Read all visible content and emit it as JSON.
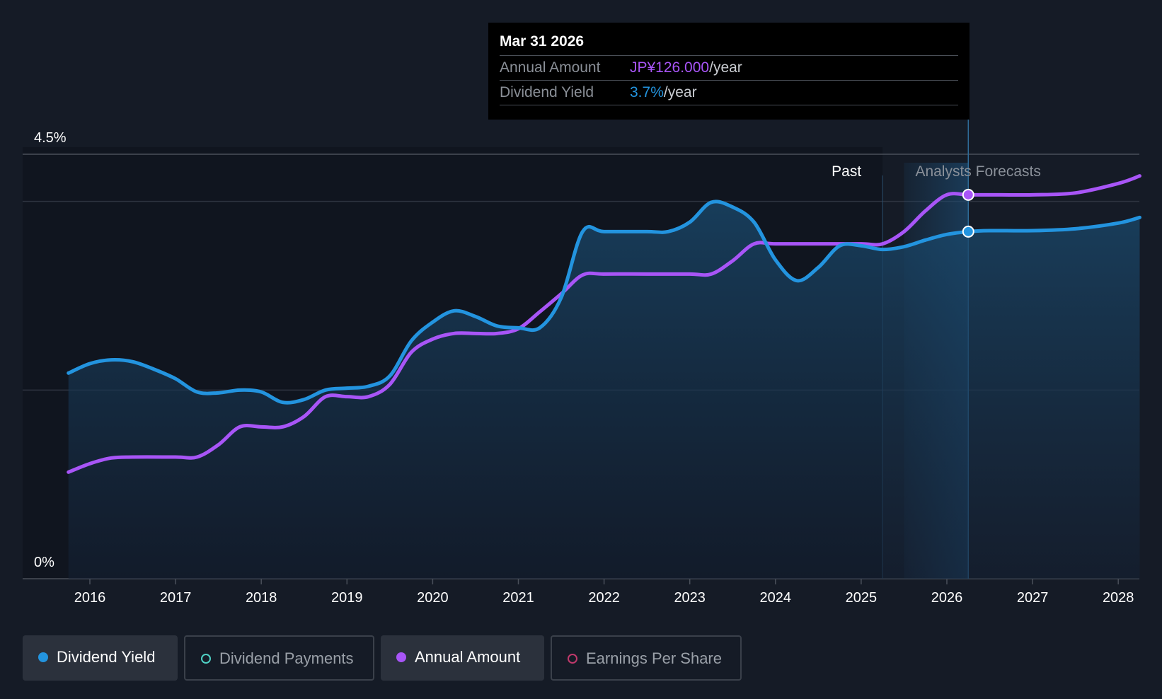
{
  "chart_data": {
    "type": "line",
    "x_ticks": [
      "2016",
      "2017",
      "2018",
      "2019",
      "2020",
      "2021",
      "2022",
      "2023",
      "2024",
      "2025",
      "2026",
      "2027",
      "2028"
    ],
    "y_axis": {
      "top_label": "4.5%",
      "bottom_label": "0%",
      "ylim": [
        0,
        4.5
      ],
      "unit": "%"
    },
    "past_label": "Past",
    "forecast_label": "Analysts Forecasts",
    "series": [
      {
        "name": "Dividend Yield",
        "color": "#2394df",
        "points": [
          [
            2015.75,
            2.18
          ],
          [
            2016.0,
            2.28
          ],
          [
            2016.25,
            2.32
          ],
          [
            2016.5,
            2.3
          ],
          [
            2016.75,
            2.22
          ],
          [
            2017.0,
            2.12
          ],
          [
            2017.25,
            1.98
          ],
          [
            2017.5,
            1.97
          ],
          [
            2017.75,
            2.0
          ],
          [
            2018.0,
            1.98
          ],
          [
            2018.25,
            1.87
          ],
          [
            2018.5,
            1.9
          ],
          [
            2018.75,
            2.0
          ],
          [
            2019.0,
            2.02
          ],
          [
            2019.25,
            2.04
          ],
          [
            2019.5,
            2.15
          ],
          [
            2019.75,
            2.52
          ],
          [
            2020.0,
            2.72
          ],
          [
            2020.25,
            2.84
          ],
          [
            2020.5,
            2.78
          ],
          [
            2020.75,
            2.68
          ],
          [
            2021.0,
            2.66
          ],
          [
            2021.25,
            2.66
          ],
          [
            2021.5,
            2.98
          ],
          [
            2021.75,
            3.68
          ],
          [
            2022.0,
            3.68
          ],
          [
            2022.5,
            3.68
          ],
          [
            2022.75,
            3.68
          ],
          [
            2023.0,
            3.78
          ],
          [
            2023.25,
            3.99
          ],
          [
            2023.5,
            3.94
          ],
          [
            2023.75,
            3.78
          ],
          [
            2024.0,
            3.38
          ],
          [
            2024.25,
            3.16
          ],
          [
            2024.5,
            3.3
          ],
          [
            2024.75,
            3.53
          ],
          [
            2025.0,
            3.53
          ],
          [
            2025.25,
            3.49
          ],
          [
            2025.5,
            3.52
          ],
          [
            2025.75,
            3.59
          ],
          [
            2026.0,
            3.65
          ],
          [
            2026.25,
            3.68
          ],
          [
            2026.5,
            3.69
          ],
          [
            2027.0,
            3.69
          ],
          [
            2027.5,
            3.71
          ],
          [
            2028.0,
            3.77
          ],
          [
            2028.25,
            3.83
          ]
        ]
      },
      {
        "name": "Annual Amount",
        "color": "#a855f7",
        "points": [
          [
            2015.75,
            1.13
          ],
          [
            2016.0,
            1.22
          ],
          [
            2016.25,
            1.28
          ],
          [
            2016.5,
            1.29
          ],
          [
            2017.0,
            1.29
          ],
          [
            2017.25,
            1.29
          ],
          [
            2017.5,
            1.42
          ],
          [
            2017.75,
            1.61
          ],
          [
            2018.0,
            1.61
          ],
          [
            2018.25,
            1.61
          ],
          [
            2018.5,
            1.72
          ],
          [
            2018.75,
            1.93
          ],
          [
            2019.0,
            1.93
          ],
          [
            2019.25,
            1.93
          ],
          [
            2019.5,
            2.06
          ],
          [
            2019.75,
            2.4
          ],
          [
            2020.0,
            2.54
          ],
          [
            2020.25,
            2.6
          ],
          [
            2020.5,
            2.6
          ],
          [
            2020.75,
            2.6
          ],
          [
            2021.0,
            2.65
          ],
          [
            2021.25,
            2.83
          ],
          [
            2021.5,
            3.02
          ],
          [
            2021.75,
            3.22
          ],
          [
            2022.0,
            3.23
          ],
          [
            2022.5,
            3.23
          ],
          [
            2023.0,
            3.23
          ],
          [
            2023.25,
            3.23
          ],
          [
            2023.5,
            3.37
          ],
          [
            2023.75,
            3.55
          ],
          [
            2024.0,
            3.55
          ],
          [
            2024.5,
            3.55
          ],
          [
            2025.0,
            3.55
          ],
          [
            2025.25,
            3.55
          ],
          [
            2025.5,
            3.68
          ],
          [
            2025.75,
            3.9
          ],
          [
            2026.0,
            4.07
          ],
          [
            2026.25,
            4.07
          ],
          [
            2026.5,
            4.07
          ],
          [
            2027.0,
            4.07
          ],
          [
            2027.5,
            4.09
          ],
          [
            2028.0,
            4.19
          ],
          [
            2028.25,
            4.27
          ]
        ]
      }
    ],
    "past_boundary": 2025.25,
    "forecast_band": [
      2025.5,
      2026.25
    ],
    "highlight_x": 2026.25,
    "grid": true
  },
  "tooltip": {
    "date": "Mar 31 2026",
    "rows": [
      {
        "label": "Annual Amount",
        "value": "JP¥126.000",
        "suffix": "/year",
        "color": "#a855f7"
      },
      {
        "label": "Dividend Yield",
        "value": "3.7%",
        "suffix": "/year",
        "color": "#2394df"
      }
    ]
  },
  "legend": [
    {
      "label": "Dividend Yield",
      "dot_color": "#2394df",
      "active": true,
      "filled": true
    },
    {
      "label": "Dividend Payments",
      "dot_color": "#4fd1c5",
      "active": false,
      "filled": false
    },
    {
      "label": "Annual Amount",
      "dot_color": "#a855f7",
      "active": true,
      "filled": true
    },
    {
      "label": "Earnings Per Share",
      "dot_color": "#c0396b",
      "active": false,
      "filled": false
    }
  ]
}
